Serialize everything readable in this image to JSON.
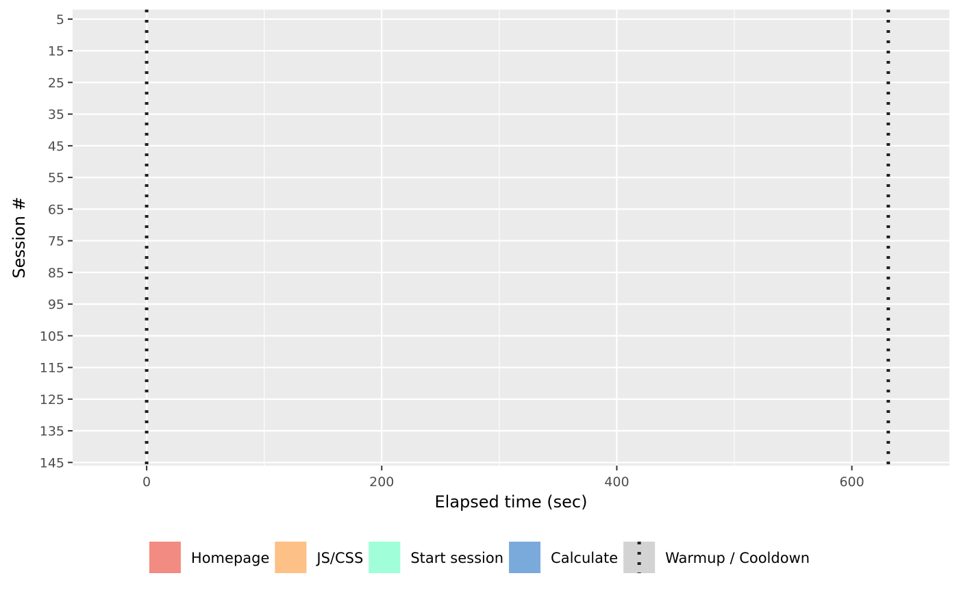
{
  "chart_data": {
    "type": "bar",
    "title": "",
    "xlabel": "Elapsed time (sec)",
    "ylabel": "Session #",
    "xlim": [
      -63,
      683
    ],
    "x_ticks": [
      0,
      200,
      400,
      600
    ],
    "x_minor_ticks": [
      -100,
      100,
      300,
      500,
      700
    ],
    "ylim": [
      2,
      146
    ],
    "y_ticks": [
      5,
      15,
      25,
      35,
      45,
      55,
      65,
      75,
      85,
      95,
      105,
      115,
      125,
      135,
      145
    ],
    "y_reversed": true,
    "grid": true,
    "background_color": "#ebebeb",
    "grid_color": "#ffffff",
    "vlines": [
      {
        "name": "Warmup / Cooldown",
        "x": 0,
        "style": "dotted"
      },
      {
        "name": "Warmup / Cooldown",
        "x": 631,
        "style": "dotted"
      }
    ],
    "series": [],
    "legend_position": "bottom",
    "legend": [
      {
        "label": "Homepage",
        "color": "#f28b82",
        "kind": "fill"
      },
      {
        "label": "JS/CSS",
        "color": "#fdc086",
        "kind": "fill"
      },
      {
        "label": "Start session",
        "color": "#a0ffd8",
        "kind": "fill"
      },
      {
        "label": "Calculate",
        "color": "#7aaadc",
        "kind": "fill"
      },
      {
        "label": "Warmup / Cooldown",
        "color": "#d3d3d3",
        "kind": "line"
      }
    ]
  }
}
